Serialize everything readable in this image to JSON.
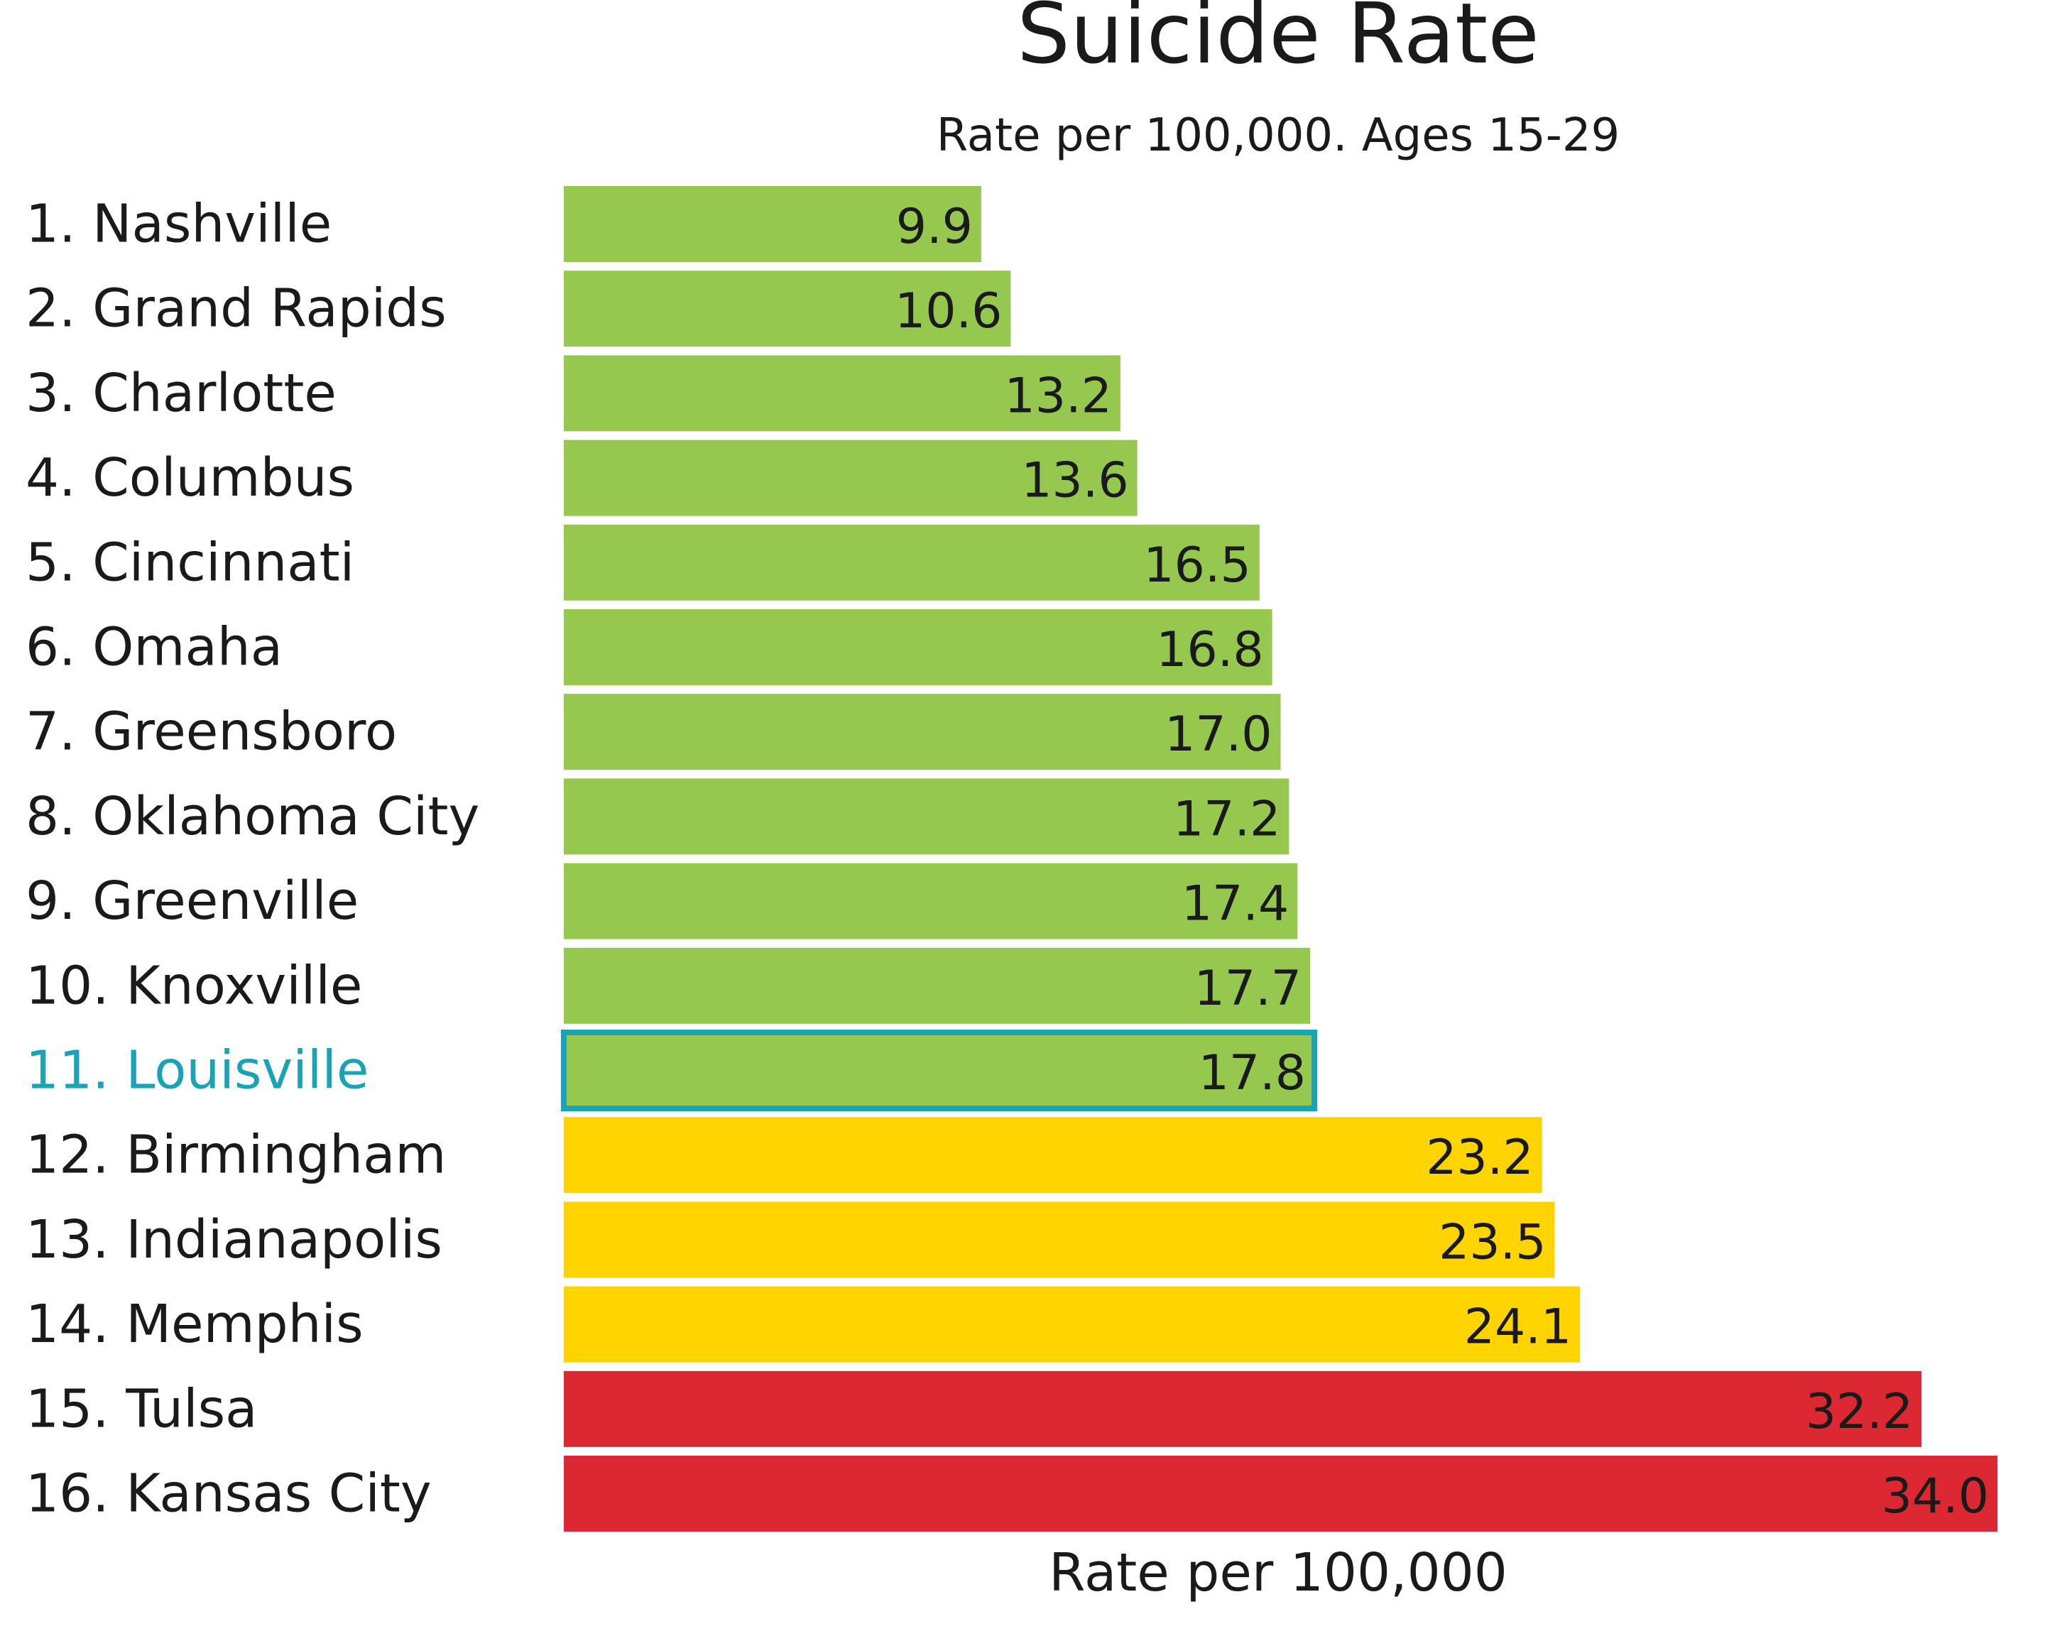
{
  "chart_data": {
    "type": "bar",
    "orientation": "horizontal",
    "title": "Suicide Rate",
    "subtitle": "Rate per 100,000. Ages 15-29",
    "xlabel": "Rate per 100,000",
    "ylabel": "",
    "xlim": [
      0,
      34.0
    ],
    "grid": false,
    "legend": "none",
    "categories": [
      "1. Nashville",
      "2. Grand Rapids",
      "3. Charlotte",
      "4. Columbus",
      "5. Cincinnati",
      "6. Omaha",
      "7. Greensboro",
      "8. Oklahoma City",
      "9. Greenville",
      "10. Knoxville",
      "11. Louisville",
      "12. Birmingham",
      "13. Indianapolis",
      "14. Memphis",
      "15. Tulsa",
      "16. Kansas City"
    ],
    "values": [
      9.9,
      10.6,
      13.2,
      13.6,
      16.5,
      16.8,
      17.0,
      17.2,
      17.4,
      17.7,
      17.8,
      23.2,
      23.5,
      24.1,
      32.2,
      34.0
    ],
    "value_labels": [
      "9.9",
      "10.6",
      "13.2",
      "13.6",
      "16.5",
      "16.8",
      "17.0",
      "17.2",
      "17.4",
      "17.7",
      "17.8",
      "23.2",
      "23.5",
      "24.1",
      "32.2",
      "34.0"
    ],
    "bar_colors": [
      "#96c850",
      "#96c850",
      "#96c850",
      "#96c850",
      "#96c850",
      "#96c850",
      "#96c850",
      "#96c850",
      "#96c850",
      "#96c850",
      "#96c850",
      "#ffd400",
      "#ffd400",
      "#ffd400",
      "#dc2832",
      "#dc2832"
    ],
    "highlight_index": 10,
    "highlight_color": "#1aa3b5",
    "label_color": "#1a1a1a"
  }
}
